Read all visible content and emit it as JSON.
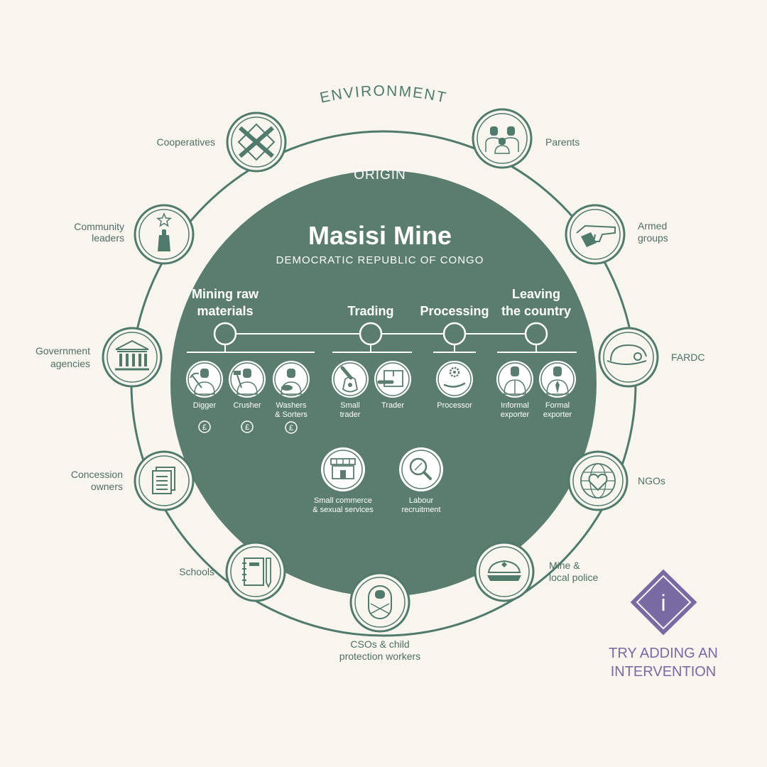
{
  "colors": {
    "background": "#f8f4ee",
    "ring": "#4f7a6c",
    "inner_fill": "#5b7d70",
    "purple": "#7a6aa3"
  },
  "environment_label": "ENVIRONMENT",
  "origin_label": "ORIGIN",
  "title": "Masisi Mine",
  "subtitle": "DEMOCRATIC REPUBLIC OF CONGO",
  "stages": [
    {
      "line1": "Mining raw",
      "line2": "materials"
    },
    {
      "line1": "",
      "line2": "Trading"
    },
    {
      "line1": "",
      "line2": "Processing"
    },
    {
      "line1": "Leaving",
      "line2": "the country"
    }
  ],
  "actors": [
    {
      "line1": "Digger",
      "line2": "",
      "icon": "digger-icon",
      "badge": "£"
    },
    {
      "line1": "Crusher",
      "line2": "",
      "icon": "crusher-icon",
      "badge": "£"
    },
    {
      "line1": "Washers",
      "line2": "& Sorters",
      "icon": "washer-icon",
      "badge": "£"
    },
    {
      "line1": "Small",
      "line2": "trader",
      "icon": "small-trader-icon",
      "badge": ""
    },
    {
      "line1": "Trader",
      "line2": "",
      "icon": "trader-icon",
      "badge": ""
    },
    {
      "line1": "Processor",
      "line2": "",
      "icon": "processor-icon",
      "badge": ""
    },
    {
      "line1": "Informal",
      "line2": "exporter",
      "icon": "informal-exporter-icon",
      "badge": ""
    },
    {
      "line1": "Formal",
      "line2": "exporter",
      "icon": "formal-exporter-icon",
      "badge": ""
    }
  ],
  "support": [
    {
      "line1": "Small commerce",
      "line2": "& sexual services",
      "icon": "shop-icon"
    },
    {
      "line1": "Labour",
      "line2": "recruitment",
      "icon": "magnifier-icon"
    }
  ],
  "environment_nodes": [
    {
      "line1": "Cooperatives",
      "line2": "",
      "icon": "cooperative-handshake-icon"
    },
    {
      "line1": "Parents",
      "line2": "",
      "icon": "parents-icon"
    },
    {
      "line1": "Armed",
      "line2": "groups",
      "icon": "pistol-icon"
    },
    {
      "line1": "FARDC",
      "line2": "",
      "icon": "military-cap-icon"
    },
    {
      "line1": "NGOs",
      "line2": "",
      "icon": "globe-heart-icon"
    },
    {
      "line1": "Mine &",
      "line2": "local police",
      "icon": "police-cap-icon"
    },
    {
      "line1": "CSOs & child",
      "line2": "protection workers",
      "icon": "baby-icon"
    },
    {
      "line1": "Schools",
      "line2": "",
      "icon": "notebook-icon"
    },
    {
      "line1": "Concession",
      "line2": "owners",
      "icon": "document-icon"
    },
    {
      "line1": "Government",
      "line2": "agencies",
      "icon": "government-building-icon"
    },
    {
      "line1": "Community",
      "line2": "leaders",
      "icon": "community-leader-icon"
    }
  ],
  "intervention": {
    "icon": "info-icon",
    "glyph": "i",
    "line1": "TRY ADDING AN",
    "line2": "INTERVENTION"
  }
}
